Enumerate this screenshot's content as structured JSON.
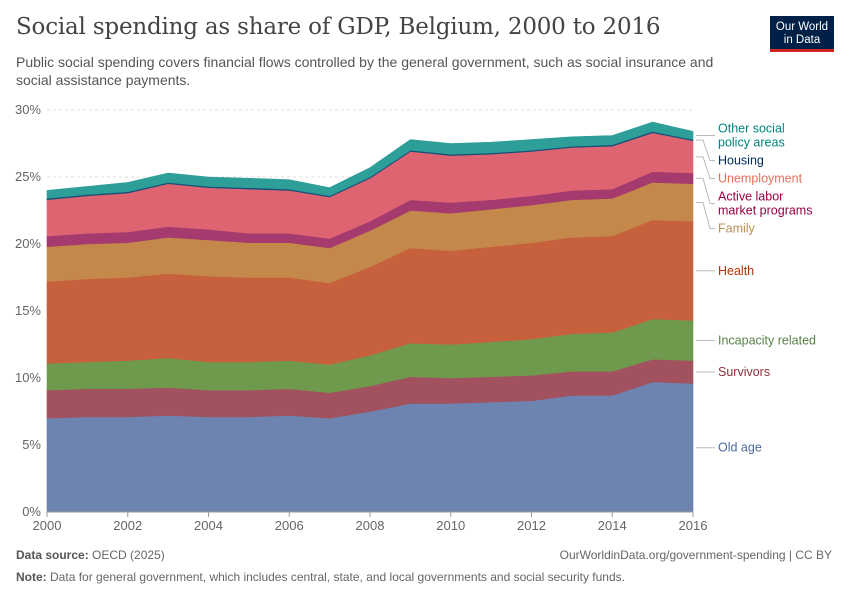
{
  "title": "Social spending as share of GDP, Belgium, 2000 to 2016",
  "subtitle": "Public social spending covers financial flows controlled by the general government, such as social insurance and social assistance payments.",
  "logo": {
    "line1": "Our World",
    "line2": "in Data",
    "bg": "#002147",
    "accent": "#ce261e"
  },
  "footer": {
    "source_label": "Data source:",
    "source_value": "OECD (2025)",
    "license": "OurWorldinData.org/government-spending | CC BY",
    "note_label": "Note:",
    "note_value": "Data for general government, which includes central, state, and local governments and social security funds."
  },
  "chart_data": {
    "type": "area",
    "stacked": true,
    "x": [
      2000,
      2001,
      2002,
      2003,
      2004,
      2005,
      2006,
      2007,
      2008,
      2009,
      2010,
      2011,
      2012,
      2013,
      2014,
      2015,
      2016
    ],
    "xticks": [
      2000,
      2002,
      2004,
      2006,
      2008,
      2010,
      2012,
      2014,
      2016
    ],
    "xtick_labels": [
      "2000",
      "2002",
      "2004",
      "2006",
      "2008",
      "2010",
      "2012",
      "2014",
      "2016"
    ],
    "yticks": [
      0,
      5,
      10,
      15,
      20,
      25,
      30
    ],
    "ytick_labels": [
      "0%",
      "5%",
      "10%",
      "15%",
      "20%",
      "25%",
      "30%"
    ],
    "ylim": [
      0,
      30
    ],
    "grid": "horizontal",
    "legend": "right",
    "series": [
      {
        "name": "Old age",
        "color": "#6d83b0",
        "label_color": "#4c6a9c",
        "values": [
          7.0,
          7.1,
          7.1,
          7.2,
          7.1,
          7.1,
          7.2,
          7.0,
          7.5,
          8.1,
          8.1,
          8.2,
          8.3,
          8.7,
          8.7,
          9.7,
          9.6
        ]
      },
      {
        "name": "Survivors",
        "color": "#a2525f",
        "label_color": "#883039",
        "values": [
          2.1,
          2.1,
          2.1,
          2.1,
          2.0,
          2.0,
          2.0,
          1.9,
          1.9,
          2.0,
          1.9,
          1.9,
          1.9,
          1.8,
          1.8,
          1.7,
          1.7
        ]
      },
      {
        "name": "Incapacity related",
        "color": "#6f9a4e",
        "label_color": "#578145",
        "values": [
          2.0,
          2.0,
          2.1,
          2.2,
          2.1,
          2.1,
          2.1,
          2.1,
          2.3,
          2.5,
          2.5,
          2.6,
          2.7,
          2.8,
          2.9,
          3.0,
          3.0
        ]
      },
      {
        "name": "Health",
        "color": "#c7603c",
        "label_color": "#b13507",
        "values": [
          6.1,
          6.2,
          6.2,
          6.3,
          6.4,
          6.3,
          6.2,
          6.1,
          6.6,
          7.1,
          7.0,
          7.1,
          7.2,
          7.2,
          7.2,
          7.4,
          7.4
        ]
      },
      {
        "name": "Family",
        "color": "#c4884a",
        "label_color": "#bc8e5a",
        "values": [
          2.6,
          2.6,
          2.6,
          2.7,
          2.7,
          2.6,
          2.6,
          2.6,
          2.7,
          2.8,
          2.8,
          2.8,
          2.8,
          2.8,
          2.8,
          2.8,
          2.8
        ]
      },
      {
        "name": "Active labor market programs",
        "color": "#a53a6e",
        "label_color": "#970046",
        "values": [
          0.8,
          0.8,
          0.8,
          0.8,
          0.8,
          0.7,
          0.7,
          0.7,
          0.7,
          0.8,
          0.8,
          0.7,
          0.7,
          0.7,
          0.7,
          0.8,
          0.8
        ]
      },
      {
        "name": "Unemployment",
        "color": "#df6472",
        "label_color": "#e56e5a",
        "values": [
          2.7,
          2.8,
          2.9,
          3.2,
          3.1,
          3.3,
          3.2,
          3.1,
          3.2,
          3.6,
          3.5,
          3.4,
          3.3,
          3.2,
          3.2,
          2.9,
          2.4
        ]
      },
      {
        "name": "Housing",
        "color": "#1a4e78",
        "label_color": "#00295b",
        "values": [
          0.1,
          0.1,
          0.1,
          0.1,
          0.1,
          0.1,
          0.1,
          0.1,
          0.1,
          0.1,
          0.1,
          0.1,
          0.1,
          0.1,
          0.1,
          0.1,
          0.1
        ]
      },
      {
        "name": "Other social policy areas",
        "color": "#2e9e99",
        "label_color": "#00847e",
        "values": [
          0.6,
          0.6,
          0.7,
          0.7,
          0.7,
          0.7,
          0.7,
          0.6,
          0.7,
          0.8,
          0.8,
          0.8,
          0.8,
          0.7,
          0.7,
          0.7,
          0.6
        ]
      }
    ]
  }
}
